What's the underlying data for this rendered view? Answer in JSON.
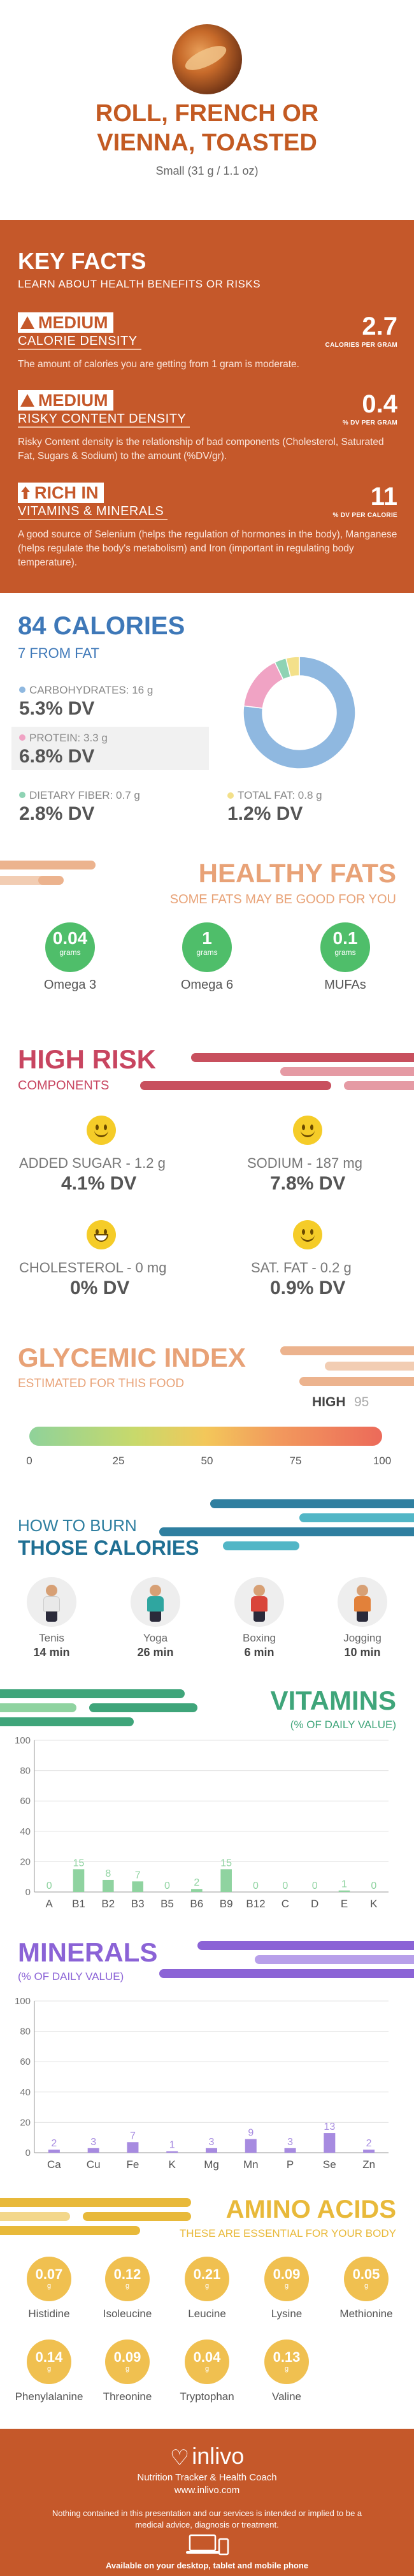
{
  "header": {
    "title_line1": "ROLL, FRENCH OR",
    "title_line2": "VIENNA, TOASTED",
    "serving": "Small (31 g / 1.1 oz)"
  },
  "key_facts": {
    "title": "KEY FACTS",
    "subtitle": "LEARN ABOUT HEALTH BENEFITS OR RISKS",
    "items": [
      {
        "level": "MEDIUM",
        "category": "CALORIE DENSITY",
        "value": "2.7",
        "unit": "CALORIES PER GRAM",
        "description": "The amount of calories you are getting from 1 gram is moderate."
      },
      {
        "level": "MEDIUM",
        "category": "RISKY CONTENT DENSITY",
        "value": "0.4",
        "unit": "% DV PER GRAM",
        "description": "Risky Content density is the relationship of bad components (Cholesterol, Saturated Fat, Sugars & Sodium) to the amount (%DV/gr)."
      },
      {
        "level": "RICH  IN",
        "category": "VITAMINS & MINERALS",
        "value": "11",
        "unit": "% DV PER CALORIE",
        "description": "A good source of Selenium (helps the regulation of hormones in the body), Manganese (helps regulate the body's metabolism) and Iron (important in regulating body temperature)."
      }
    ]
  },
  "calories": {
    "title": "84 CALORIES",
    "subtitle": "7 FROM FAT",
    "nutrients": [
      {
        "label": "CARBOHYDRATES: 16 g",
        "dv": "5.3% DV",
        "color": "#8fb8e0"
      },
      {
        "label": "PROTEIN: 3.3 g",
        "dv": "6.8% DV",
        "color": "#f0a3c4"
      },
      {
        "label": "DIETARY FIBER: 0.7 g",
        "dv": "2.8% DV",
        "color": "#8fd3b4"
      },
      {
        "label": "TOTAL FAT: 0.8 g",
        "dv": "1.2% DV",
        "color": "#f3e08a"
      }
    ],
    "donut": [
      {
        "name": "carbohydrates",
        "value": 16,
        "color": "#8fb8e0"
      },
      {
        "name": "protein",
        "value": 3.3,
        "color": "#f0a3c4"
      },
      {
        "name": "fiber",
        "value": 0.7,
        "color": "#8fd3b4"
      },
      {
        "name": "fat",
        "value": 0.8,
        "color": "#f3e08a"
      }
    ]
  },
  "healthy_fats": {
    "title": "HEALTHY FATS",
    "subtitle": "SOME FATS MAY BE GOOD FOR YOU",
    "items": [
      {
        "value": "0.04",
        "unit": "grams",
        "name": "Omega 3"
      },
      {
        "value": "1",
        "unit": "grams",
        "name": "Omega 6"
      },
      {
        "value": "0.1",
        "unit": "grams",
        "name": "MUFAs"
      }
    ]
  },
  "high_risk": {
    "title": "HIGH RISK",
    "subtitle": "COMPONENTS",
    "items": [
      {
        "label": "ADDED SUGAR - 1.2 g",
        "dv": "4.1% DV",
        "icon": "smile-icon"
      },
      {
        "label": "SODIUM - 187 mg",
        "dv": "7.8% DV",
        "icon": "smile-icon"
      },
      {
        "label": "CHOLESTEROL - 0 mg",
        "dv": "0% DV",
        "icon": "grin-icon"
      },
      {
        "label": "SAT. FAT - 0.2 g",
        "dv": "0.9% DV",
        "icon": "smile-icon"
      }
    ]
  },
  "glycemic": {
    "title": "GLYCEMIC INDEX",
    "subtitle": "ESTIMATED FOR THIS FOOD",
    "level": "HIGH",
    "value": "95",
    "ticks": [
      "0",
      "25",
      "50",
      "75",
      "100"
    ]
  },
  "burn": {
    "title_line1": "HOW TO BURN",
    "title_line2": "THOSE CALORIES",
    "activities": [
      {
        "name": "Tenis",
        "time": "14 min",
        "color": "#e9e9e9"
      },
      {
        "name": "Yoga",
        "time": "26 min",
        "color": "#2fa6a0"
      },
      {
        "name": "Boxing",
        "time": "6 min",
        "color": "#d9453a"
      },
      {
        "name": "Jogging",
        "time": "10 min",
        "color": "#e2813a"
      }
    ]
  },
  "vitamins": {
    "title": "VITAMINS",
    "subtitle": "(% OF DAILY VALUE)",
    "chart_data": {
      "type": "bar",
      "categories": [
        "A",
        "B1",
        "B2",
        "B3",
        "B5",
        "B6",
        "B9",
        "B12",
        "C",
        "D",
        "E",
        "K"
      ],
      "values": [
        0,
        15,
        8,
        7,
        0,
        2,
        15,
        0,
        0,
        0,
        1,
        0
      ],
      "labels": [
        "0",
        "15",
        "8",
        "7",
        "0",
        "2",
        "15",
        "0",
        "0",
        "0",
        "1",
        "0"
      ],
      "yticks": [
        "0",
        "20",
        "40",
        "60",
        "80",
        "100"
      ],
      "ylim": [
        0,
        100
      ],
      "color": "#8fd3a0",
      "label_color": "#8fd3a0"
    }
  },
  "minerals": {
    "title": "MINERALS",
    "subtitle": "(% OF DAILY VALUE)",
    "chart_data": {
      "type": "bar",
      "categories": [
        "Ca",
        "Cu",
        "Fe",
        "K",
        "Mg",
        "Mn",
        "P",
        "Se",
        "Zn"
      ],
      "values": [
        2,
        3,
        7,
        1,
        3,
        9,
        3,
        13,
        2
      ],
      "labels": [
        "2",
        "3",
        "7",
        "1",
        "3",
        "9",
        "3",
        "13",
        "2"
      ],
      "yticks": [
        "0",
        "20",
        "40",
        "60",
        "80",
        "100"
      ],
      "ylim": [
        0,
        100
      ],
      "color": "#a78be0",
      "label_color": "#a78be0"
    }
  },
  "amino": {
    "title": "AMINO ACIDS",
    "subtitle": "THESE ARE ESSENTIAL FOR YOUR BODY",
    "items": [
      {
        "value": "0.07",
        "unit": "g",
        "name": "Histidine"
      },
      {
        "value": "0.12",
        "unit": "g",
        "name": "Isoleucine"
      },
      {
        "value": "0.21",
        "unit": "g",
        "name": "Leucine"
      },
      {
        "value": "0.09",
        "unit": "g",
        "name": "Lysine"
      },
      {
        "value": "0.05",
        "unit": "g",
        "name": "Methionine"
      },
      {
        "value": "0.14",
        "unit": "g",
        "name": "Phenylalanine"
      },
      {
        "value": "0.09",
        "unit": "g",
        "name": "Threonine"
      },
      {
        "value": "0.04",
        "unit": "g",
        "name": "Tryptophan"
      },
      {
        "value": "0.13",
        "unit": "g",
        "name": "Valine"
      }
    ]
  },
  "footer": {
    "logo": "inlivo",
    "tagline": "Nutrition Tracker & Health Coach",
    "url": "www.inlivo.com",
    "disclaimer": "Nothing contained in this presentation and our services is intended or implied to be a medical advice, diagnosis or treatment.",
    "availability": "Available on your desktop, tablet and mobile phone"
  }
}
